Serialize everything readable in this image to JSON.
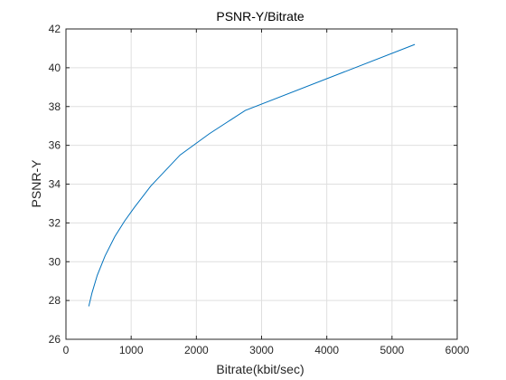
{
  "chart_data": {
    "type": "line",
    "title": "PSNR-Y/Bitrate",
    "xlabel": "Bitrate(kbit/sec)",
    "ylabel": "PSNR-Y",
    "xlim": [
      0,
      6000
    ],
    "ylim": [
      26,
      42
    ],
    "xticks": [
      0,
      1000,
      2000,
      3000,
      4000,
      5000,
      6000
    ],
    "yticks": [
      26,
      28,
      30,
      32,
      34,
      36,
      38,
      40,
      42
    ],
    "grid": true,
    "legend": "none",
    "series": [
      {
        "color": "#0072bd",
        "x": [
          350,
          400,
          480,
          600,
          750,
          900,
          1050,
          1300,
          1750,
          2200,
          2750,
          5350
        ],
        "y": [
          27.7,
          28.4,
          29.3,
          30.3,
          31.3,
          32.1,
          32.8,
          33.9,
          35.5,
          36.6,
          37.8,
          41.2
        ]
      }
    ]
  }
}
